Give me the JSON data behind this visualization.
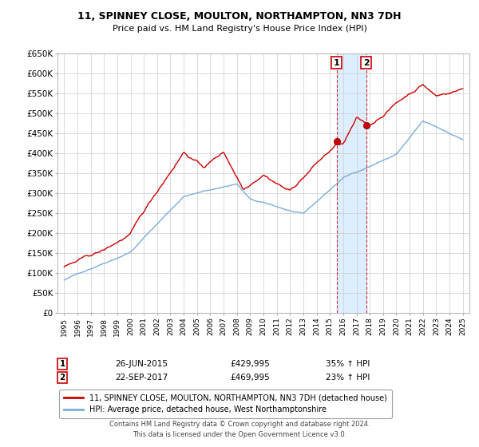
{
  "title": "11, SPINNEY CLOSE, MOULTON, NORTHAMPTON, NN3 7DH",
  "subtitle": "Price paid vs. HM Land Registry's House Price Index (HPI)",
  "legend_line1": "11, SPINNEY CLOSE, MOULTON, NORTHAMPTON, NN3 7DH (detached house)",
  "legend_line2": "HPI: Average price, detached house, West Northamptonshire",
  "sale1_date": "26-JUN-2015",
  "sale1_price": "£429,995",
  "sale1_hpi": "35% ↑ HPI",
  "sale2_date": "22-SEP-2017",
  "sale2_price": "£469,995",
  "sale2_hpi": "23% ↑ HPI",
  "sale1_year": 2015.5,
  "sale1_value": 429995,
  "sale2_year": 2017.72,
  "sale2_value": 469995,
  "footer": "Contains HM Land Registry data © Crown copyright and database right 2024.\nThis data is licensed under the Open Government Licence v3.0.",
  "ylim_min": 0,
  "ylim_max": 650000,
  "ytick_step": 50000,
  "line_color_red": "#cc0000",
  "line_color_blue": "#7aaddb",
  "shade_color": "#ddeeff",
  "background_color": "#ffffff",
  "grid_color": "#cccccc",
  "title_fontsize": 9,
  "subtitle_fontsize": 8
}
